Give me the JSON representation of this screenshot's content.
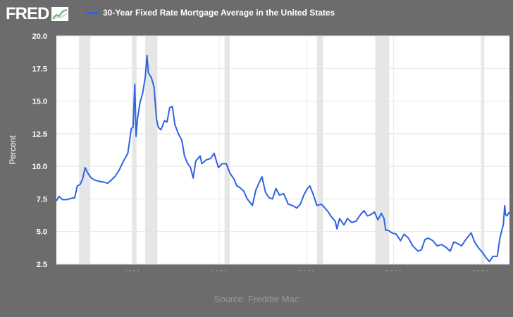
{
  "header": {
    "logo_text": "FRED",
    "logo_icon": "fred-chart-icon"
  },
  "source": "Source: Freddie Mac",
  "colors": {
    "background": "#6c6c6c",
    "plot_bg": "#ffffff",
    "series": "#2f63e4",
    "recession": "#e6e6e6"
  },
  "chart_data": {
    "type": "line",
    "ylabel": "Percent",
    "xlabel": "",
    "xlim": [
      1971.3,
      2023.3
    ],
    "ylim": [
      2.5,
      20.0
    ],
    "y_ticks": [
      "2.5",
      "5.0",
      "7.5",
      "10.0",
      "12.5",
      "15.0",
      "17.5",
      "20.0"
    ],
    "x_ticks": [
      "1980",
      "1990",
      "2000",
      "2010",
      "2020"
    ],
    "grid": true,
    "legend_position": "top-left",
    "recessions": [
      [
        1973.9,
        1975.2
      ],
      [
        1980.0,
        1980.5
      ],
      [
        1981.5,
        1982.9
      ],
      [
        1990.6,
        1991.2
      ],
      [
        2001.2,
        2001.9
      ],
      [
        2007.9,
        2009.5
      ],
      [
        2020.1,
        2020.4
      ]
    ],
    "series": [
      {
        "name": "30-Year Fixed Rate Mortgage Average in the United States",
        "x": [
          1971.3,
          1971.6,
          1972.0,
          1972.5,
          1973.0,
          1973.4,
          1973.7,
          1974.0,
          1974.3,
          1974.6,
          1974.9,
          1975.3,
          1975.7,
          1976.2,
          1976.7,
          1977.2,
          1977.6,
          1978.0,
          1978.5,
          1979.0,
          1979.5,
          1979.9,
          1980.1,
          1980.3,
          1980.45,
          1980.6,
          1980.9,
          1981.2,
          1981.5,
          1981.7,
          1981.85,
          1982.0,
          1982.2,
          1982.5,
          1982.8,
          1983.0,
          1983.3,
          1983.7,
          1984.0,
          1984.3,
          1984.6,
          1984.9,
          1985.3,
          1985.7,
          1986.0,
          1986.3,
          1986.7,
          1987.0,
          1987.3,
          1987.8,
          1988.0,
          1988.5,
          1989.0,
          1989.4,
          1989.9,
          1990.3,
          1990.8,
          1991.2,
          1991.7,
          1992.0,
          1992.3,
          1992.8,
          1993.2,
          1993.8,
          1994.2,
          1994.6,
          1994.9,
          1995.3,
          1995.7,
          1996.1,
          1996.5,
          1996.9,
          1997.4,
          1997.9,
          1998.4,
          1998.9,
          1999.3,
          1999.7,
          2000.1,
          2000.4,
          2000.8,
          2001.2,
          2001.7,
          2002.0,
          2002.5,
          2002.9,
          2003.3,
          2003.5,
          2003.8,
          2004.3,
          2004.7,
          2005.2,
          2005.7,
          2006.2,
          2006.6,
          2007.0,
          2007.4,
          2007.8,
          2008.2,
          2008.6,
          2008.9,
          2009.1,
          2009.4,
          2009.8,
          2010.3,
          2010.8,
          2011.2,
          2011.7,
          2012.2,
          2012.8,
          2013.2,
          2013.6,
          2014.0,
          2014.5,
          2015.0,
          2015.5,
          2016.0,
          2016.5,
          2016.9,
          2017.3,
          2017.8,
          2018.3,
          2018.9,
          2019.3,
          2019.8,
          2020.2,
          2020.6,
          2021.0,
          2021.4,
          2021.9,
          2022.2,
          2022.5,
          2022.6,
          2022.75,
          2022.85,
          2023.0,
          2023.3
        ],
        "values": [
          7.35,
          7.7,
          7.45,
          7.45,
          7.55,
          7.6,
          8.5,
          8.6,
          9.0,
          9.9,
          9.5,
          9.1,
          8.95,
          8.85,
          8.8,
          8.7,
          8.95,
          9.2,
          9.7,
          10.4,
          11.0,
          12.9,
          13.0,
          16.3,
          12.3,
          13.6,
          14.9,
          15.6,
          16.8,
          18.5,
          17.2,
          17.0,
          16.8,
          16.1,
          13.6,
          13.0,
          12.8,
          13.5,
          13.4,
          14.5,
          14.6,
          13.2,
          12.5,
          12.0,
          10.8,
          10.3,
          9.9,
          9.1,
          10.4,
          10.8,
          10.2,
          10.5,
          10.6,
          11.0,
          9.9,
          10.2,
          10.2,
          9.5,
          9.0,
          8.5,
          8.4,
          8.1,
          7.5,
          7.0,
          8.2,
          8.8,
          9.2,
          8.0,
          7.6,
          7.5,
          8.3,
          7.8,
          7.9,
          7.1,
          7.0,
          6.8,
          7.1,
          7.8,
          8.3,
          8.5,
          7.8,
          7.0,
          7.1,
          6.9,
          6.5,
          6.1,
          5.8,
          5.2,
          6.0,
          5.5,
          6.0,
          5.7,
          5.8,
          6.3,
          6.6,
          6.2,
          6.3,
          6.5,
          5.9,
          6.4,
          6.0,
          5.1,
          5.1,
          4.9,
          4.8,
          4.3,
          4.8,
          4.5,
          3.9,
          3.5,
          3.6,
          4.4,
          4.5,
          4.3,
          3.9,
          4.0,
          3.8,
          3.5,
          4.2,
          4.1,
          3.9,
          4.4,
          4.9,
          4.2,
          3.7,
          3.4,
          3.0,
          2.7,
          3.1,
          3.1,
          4.5,
          5.3,
          5.5,
          7.0,
          6.3,
          6.2,
          6.5
        ]
      }
    ]
  }
}
